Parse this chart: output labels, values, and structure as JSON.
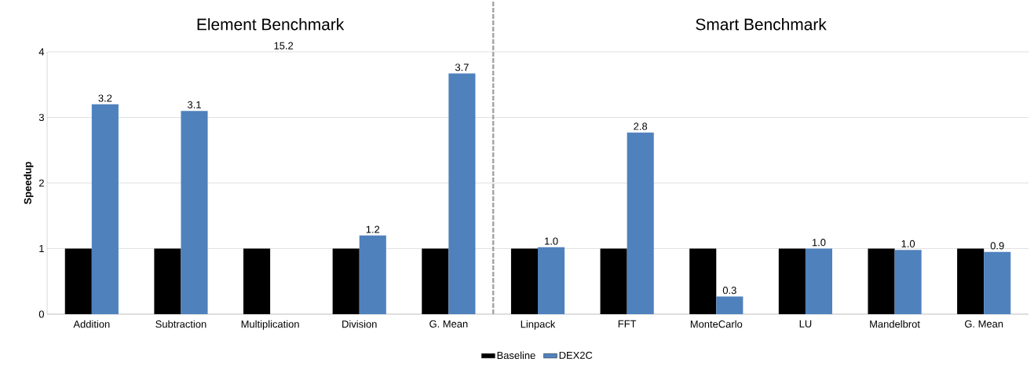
{
  "chart_data": {
    "type": "bar",
    "ylabel": "Speedup",
    "categories": [
      "Addition",
      "Subtraction",
      "Multiplication",
      "Division",
      "G. Mean",
      "Linpack",
      "FFT",
      "MonteCarlo",
      "LU",
      "Mandelbrot",
      "G. Mean"
    ],
    "series": [
      {
        "name": "Baseline",
        "color": "#000000",
        "values": [
          1,
          1,
          1,
          1,
          1,
          1,
          1,
          1,
          1,
          1,
          1
        ]
      },
      {
        "name": "DEX2C",
        "color": "#4f81bd",
        "values": [
          3.2,
          3.1,
          null,
          1.2,
          3.67,
          1.02,
          2.77,
          0.27,
          1.0,
          0.98,
          0.95
        ],
        "value_labels": [
          "3.2",
          "3.1",
          "15.2",
          "1.2",
          "3.7",
          "1.0",
          "2.8",
          "0.3",
          "1.0",
          "1.0",
          "0.9"
        ]
      }
    ],
    "ylim": [
      0,
      4
    ],
    "yticks": [
      0,
      1,
      2,
      3,
      4
    ],
    "grid": "y",
    "legend": "bottom",
    "annotations": [
      "Element Benchmark",
      "Smart Benchmark"
    ]
  }
}
